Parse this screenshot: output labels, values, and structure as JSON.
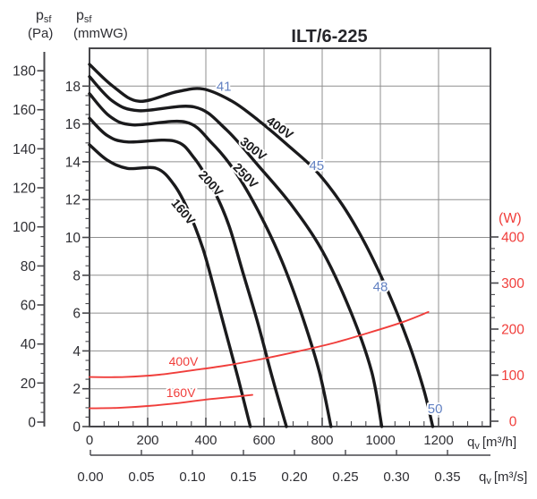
{
  "title": "ILT/6-225",
  "colors": {
    "curve": "#1a1a1c",
    "power": "#f03e3b",
    "grid": "#8f8f8f",
    "frame": "#47474b",
    "text": "#2e2e33",
    "noise_blue": "#6281c2"
  },
  "axes": {
    "pressure_pa": {
      "symbol": "p",
      "sub": "sf",
      "unit": "(Pa)",
      "ticks": [
        0,
        20,
        40,
        60,
        80,
        100,
        120,
        140,
        160,
        180
      ],
      "minor_step": 5
    },
    "pressure_mmwg": {
      "symbol": "p",
      "sub": "sf",
      "unit": "(mmWG)",
      "ticks": [
        0,
        2,
        4,
        6,
        8,
        10,
        12,
        14,
        16,
        18
      ],
      "minor_step": 0.5
    },
    "flow_m3h": {
      "symbol": "q",
      "sub": "v",
      "unit": "[m³/h]",
      "ticks": [
        0,
        200,
        400,
        600,
        800,
        1000,
        1200
      ],
      "minor_step": 50
    },
    "flow_m3s": {
      "symbol": "q",
      "sub": "v",
      "unit": "[m³/s]",
      "ticks": [
        "0.00",
        "0.05",
        "0.10",
        "0.15",
        "0.20",
        "0.25",
        "0.30",
        "0.35"
      ]
    },
    "power_w": {
      "unit": "(W)",
      "ticks": [
        0,
        100,
        200,
        300,
        400
      ],
      "minor_step": 25
    }
  },
  "chart_data": {
    "type": "line",
    "title": "ILT/6-225",
    "x_axis": {
      "label": "qv",
      "unit": "m³/h",
      "range": [
        0,
        1380
      ],
      "gridlines_every": 200
    },
    "y_axis_left_pa": {
      "label": "psf",
      "unit": "Pa",
      "range": [
        0,
        185
      ]
    },
    "y_axis_left_mmwg": {
      "label": "psf",
      "unit": "mmWG",
      "range": [
        0,
        20
      ]
    },
    "y_axis_right": {
      "label": "power",
      "unit": "W",
      "range": [
        0,
        400
      ]
    },
    "grid": true,
    "series": [
      {
        "name": "fan-curve-160V",
        "label": "160V",
        "role": "fan",
        "y_unit": "mmWG",
        "label_pos": {
          "q": 311,
          "v": 11.4,
          "angle": 50
        },
        "points": [
          [
            0,
            14.9
          ],
          [
            60,
            14.1
          ],
          [
            130,
            13.65
          ],
          [
            230,
            13.65
          ],
          [
            290,
            12.8
          ],
          [
            340,
            11.4
          ],
          [
            390,
            9.4
          ],
          [
            430,
            7.2
          ],
          [
            470,
            4.9
          ],
          [
            510,
            2.6
          ],
          [
            553,
            0
          ]
        ]
      },
      {
        "name": "fan-curve-200V",
        "label": "200V",
        "role": "fan",
        "y_unit": "mmWG",
        "label_pos": {
          "q": 406,
          "v": 12.9,
          "angle": 48
        },
        "points": [
          [
            0,
            16.3
          ],
          [
            60,
            15.4
          ],
          [
            130,
            15.05
          ],
          [
            290,
            15.1
          ],
          [
            360,
            14.2
          ],
          [
            430,
            12.4
          ],
          [
            480,
            10.6
          ],
          [
            530,
            8.0
          ],
          [
            580,
            5.4
          ],
          [
            630,
            2.5
          ],
          [
            677,
            0
          ]
        ]
      },
      {
        "name": "fan-curve-250V",
        "label": "250V",
        "role": "fan",
        "y_unit": "mmWG",
        "label_pos": {
          "q": 526,
          "v": 13.3,
          "angle": 46
        },
        "points": [
          [
            0,
            17.6
          ],
          [
            70,
            16.4
          ],
          [
            150,
            15.95
          ],
          [
            330,
            16.1
          ],
          [
            420,
            15.0
          ],
          [
            500,
            13.5
          ],
          [
            580,
            11.4
          ],
          [
            660,
            8.8
          ],
          [
            730,
            5.9
          ],
          [
            790,
            2.9
          ],
          [
            830,
            0
          ]
        ]
      },
      {
        "name": "fan-curve-300V",
        "label": "300V",
        "role": "fan",
        "y_unit": "mmWG",
        "label_pos": {
          "q": 554,
          "v": 14.7,
          "angle": 38
        },
        "points": [
          [
            0,
            18.5
          ],
          [
            80,
            17.2
          ],
          [
            170,
            16.7
          ],
          [
            360,
            16.9
          ],
          [
            470,
            15.7
          ],
          [
            580,
            13.8
          ],
          [
            690,
            11.8
          ],
          [
            800,
            9.3
          ],
          [
            900,
            6.0
          ],
          [
            970,
            2.9
          ],
          [
            1005,
            0
          ]
        ]
      },
      {
        "name": "fan-curve-400V",
        "label": "400V",
        "role": "fan",
        "y_unit": "mmWG",
        "label_pos": {
          "q": 646,
          "v": 15.8,
          "angle": 36
        },
        "points": [
          [
            0,
            19.15
          ],
          [
            80,
            18.0
          ],
          [
            170,
            17.2
          ],
          [
            300,
            17.7
          ],
          [
            390,
            17.85
          ],
          [
            490,
            17.2
          ],
          [
            580,
            16.2
          ],
          [
            680,
            14.9
          ],
          [
            780,
            13.5
          ],
          [
            870,
            11.7
          ],
          [
            950,
            9.6
          ],
          [
            1030,
            7.0
          ],
          [
            1100,
            4.3
          ],
          [
            1150,
            1.9
          ],
          [
            1180,
            0
          ]
        ]
      },
      {
        "name": "power-curve-400V",
        "label": "400V",
        "role": "power",
        "y_unit": "W",
        "label_pos": {
          "q": 323,
          "w": 128,
          "angle": 0
        },
        "points": [
          [
            0,
            96
          ],
          [
            120,
            96
          ],
          [
            240,
            101
          ],
          [
            360,
            111
          ],
          [
            480,
            122
          ],
          [
            600,
            136
          ],
          [
            720,
            152
          ],
          [
            840,
            170
          ],
          [
            960,
            192
          ],
          [
            1080,
            216
          ],
          [
            1165,
            237
          ]
        ]
      },
      {
        "name": "power-curve-160V",
        "label": "160V",
        "role": "power",
        "y_unit": "W",
        "label_pos": {
          "q": 314,
          "w": 60,
          "angle": 0
        },
        "points": [
          [
            0,
            28
          ],
          [
            100,
            29
          ],
          [
            200,
            33
          ],
          [
            300,
            39
          ],
          [
            400,
            47
          ],
          [
            480,
            52
          ],
          [
            560,
            57
          ]
        ]
      }
    ],
    "noise_labels_dba": [
      {
        "text": "41",
        "q": 462,
        "v": 18.0
      },
      {
        "text": "45",
        "q": 781,
        "v": 13.8
      },
      {
        "text": "48",
        "q": 1000,
        "v": 7.4
      },
      {
        "text": "50",
        "q": 1188,
        "v": 0.95
      }
    ]
  }
}
